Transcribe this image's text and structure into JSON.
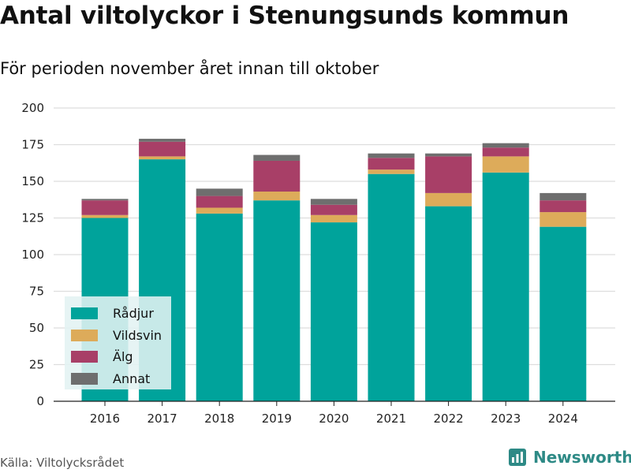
{
  "header": {
    "title": "Antal viltolyckor i Stenungsunds kommun",
    "subtitle": "För perioden november året innan till oktober"
  },
  "footer": {
    "source": "Källa: Viltolycksrådet",
    "brand": "Newsworthy",
    "brand_icon": "newsworthy-logo-icon"
  },
  "colors": {
    "radjur": "#00a39b",
    "vildsvin": "#ddab5a",
    "alg": "#a83f67",
    "annat": "#6e6e6e",
    "grid": "#dddddd",
    "brand": "#2e8a86"
  },
  "chart_data": {
    "type": "bar",
    "stacked": true,
    "categories": [
      "2016",
      "2017",
      "2018",
      "2019",
      "2020",
      "2021",
      "2022",
      "2023",
      "2024"
    ],
    "series": [
      {
        "name": "Rådjur",
        "color": "#00a39b",
        "values": [
          125,
          165,
          128,
          137,
          122,
          155,
          133,
          156,
          119
        ]
      },
      {
        "name": "Vildsvin",
        "color": "#ddab5a",
        "values": [
          2,
          2,
          4,
          6,
          5,
          3,
          9,
          11,
          10
        ]
      },
      {
        "name": "Älg",
        "color": "#a83f67",
        "values": [
          10,
          10,
          8,
          21,
          7,
          8,
          25,
          6,
          8
        ]
      },
      {
        "name": "Annat",
        "color": "#6e6e6e",
        "values": [
          1,
          2,
          5,
          4,
          4,
          3,
          2,
          3,
          5
        ]
      }
    ],
    "y_ticks": [
      "0",
      "25",
      "50",
      "75",
      "100",
      "125",
      "150",
      "175",
      "200"
    ],
    "ylim": [
      0,
      200
    ],
    "grid": true,
    "legend_position": "bottom-left"
  }
}
